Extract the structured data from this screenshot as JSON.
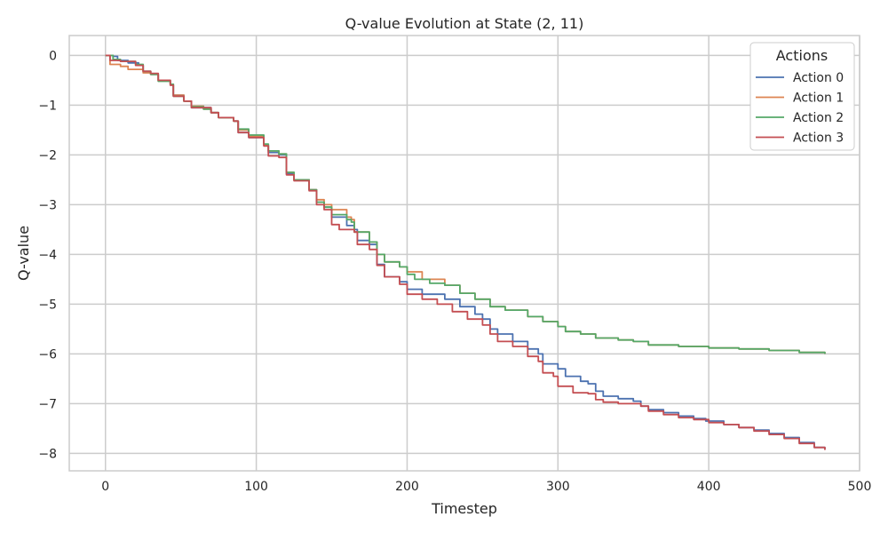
{
  "chart_data": {
    "type": "line",
    "title": "Q-value Evolution at State (2, 11)",
    "xlabel": "Timestep",
    "ylabel": "Q-value",
    "xlim": [
      -24,
      500
    ],
    "ylim": [
      -8.35,
      0.4
    ],
    "xticks": [
      0,
      100,
      200,
      300,
      400,
      500
    ],
    "yticks": [
      0,
      -1,
      -2,
      -3,
      -4,
      -5,
      -6,
      -7,
      -8
    ],
    "ytick_labels": [
      "0",
      "−1",
      "−2",
      "−3",
      "−4",
      "−5",
      "−6",
      "−7",
      "−8"
    ],
    "grid": true,
    "legend": {
      "title": "Actions",
      "placement": "top-right"
    },
    "series": [
      {
        "name": "Action 0",
        "color": "#4c72b0",
        "points": [
          [
            0,
            0
          ],
          [
            5,
            -0.02
          ],
          [
            8,
            -0.1
          ],
          [
            15,
            -0.15
          ],
          [
            22,
            -0.2
          ],
          [
            25,
            -0.32
          ],
          [
            30,
            -0.38
          ],
          [
            35,
            -0.5
          ],
          [
            43,
            -0.58
          ],
          [
            45,
            -0.8
          ],
          [
            52,
            -0.92
          ],
          [
            57,
            -1.05
          ],
          [
            70,
            -1.15
          ],
          [
            75,
            -1.25
          ],
          [
            85,
            -1.32
          ],
          [
            88,
            -1.55
          ],
          [
            95,
            -1.65
          ],
          [
            105,
            -1.8
          ],
          [
            108,
            -1.95
          ],
          [
            115,
            -2.0
          ],
          [
            120,
            -2.38
          ],
          [
            125,
            -2.5
          ],
          [
            135,
            -2.7
          ],
          [
            140,
            -2.95
          ],
          [
            145,
            -3.05
          ],
          [
            150,
            -3.25
          ],
          [
            160,
            -3.42
          ],
          [
            165,
            -3.5
          ],
          [
            167,
            -3.72
          ],
          [
            175,
            -3.8
          ],
          [
            180,
            -4.2
          ],
          [
            185,
            -4.45
          ],
          [
            195,
            -4.55
          ],
          [
            200,
            -4.7
          ],
          [
            210,
            -4.8
          ],
          [
            225,
            -4.9
          ],
          [
            235,
            -5.05
          ],
          [
            245,
            -5.2
          ],
          [
            250,
            -5.3
          ],
          [
            255,
            -5.5
          ],
          [
            260,
            -5.6
          ],
          [
            270,
            -5.75
          ],
          [
            280,
            -5.9
          ],
          [
            287,
            -6.0
          ],
          [
            290,
            -6.2
          ],
          [
            300,
            -6.3
          ],
          [
            305,
            -6.45
          ],
          [
            315,
            -6.55
          ],
          [
            320,
            -6.6
          ],
          [
            325,
            -6.75
          ],
          [
            330,
            -6.85
          ],
          [
            340,
            -6.9
          ],
          [
            350,
            -6.95
          ],
          [
            355,
            -7.05
          ],
          [
            360,
            -7.12
          ],
          [
            370,
            -7.18
          ],
          [
            380,
            -7.25
          ],
          [
            390,
            -7.3
          ],
          [
            398,
            -7.35
          ],
          [
            410,
            -7.42
          ],
          [
            420,
            -7.48
          ],
          [
            430,
            -7.53
          ],
          [
            440,
            -7.6
          ],
          [
            450,
            -7.68
          ],
          [
            460,
            -7.78
          ],
          [
            470,
            -7.88
          ],
          [
            477,
            -7.92
          ]
        ]
      },
      {
        "name": "Action 1",
        "color": "#dd8452",
        "points": [
          [
            0,
            0
          ],
          [
            3,
            -0.18
          ],
          [
            10,
            -0.22
          ],
          [
            15,
            -0.28
          ],
          [
            22,
            -0.28
          ],
          [
            25,
            -0.35
          ],
          [
            30,
            -0.38
          ],
          [
            35,
            -0.5
          ],
          [
            43,
            -0.58
          ],
          [
            45,
            -0.8
          ],
          [
            52,
            -0.92
          ],
          [
            57,
            -1.02
          ],
          [
            65,
            -1.08
          ],
          [
            70,
            -1.15
          ],
          [
            75,
            -1.25
          ],
          [
            85,
            -1.32
          ],
          [
            88,
            -1.5
          ],
          [
            95,
            -1.62
          ],
          [
            105,
            -1.8
          ],
          [
            108,
            -1.92
          ],
          [
            115,
            -1.98
          ],
          [
            120,
            -2.35
          ],
          [
            125,
            -2.5
          ],
          [
            135,
            -2.7
          ],
          [
            140,
            -2.9
          ],
          [
            145,
            -3.0
          ],
          [
            150,
            -3.1
          ],
          [
            160,
            -3.25
          ],
          [
            163,
            -3.3
          ],
          [
            165,
            -3.55
          ],
          [
            175,
            -3.75
          ],
          [
            180,
            -4.0
          ],
          [
            185,
            -4.15
          ],
          [
            195,
            -4.25
          ],
          [
            200,
            -4.35
          ],
          [
            210,
            -4.5
          ],
          [
            225,
            -4.62
          ],
          [
            235,
            -4.78
          ],
          [
            245,
            -4.9
          ],
          [
            255,
            -5.05
          ],
          [
            265,
            -5.12
          ],
          [
            280,
            -5.25
          ],
          [
            290,
            -5.35
          ],
          [
            300,
            -5.45
          ],
          [
            305,
            -5.55
          ],
          [
            315,
            -5.6
          ],
          [
            325,
            -5.68
          ],
          [
            340,
            -5.72
          ],
          [
            350,
            -5.75
          ],
          [
            360,
            -5.82
          ],
          [
            380,
            -5.85
          ],
          [
            400,
            -5.88
          ],
          [
            420,
            -5.9
          ],
          [
            440,
            -5.93
          ],
          [
            460,
            -5.97
          ],
          [
            477,
            -6.0
          ]
        ]
      },
      {
        "name": "Action 2",
        "color": "#55a868",
        "points": [
          [
            0,
            0
          ],
          [
            5,
            -0.08
          ],
          [
            10,
            -0.12
          ],
          [
            20,
            -0.18
          ],
          [
            25,
            -0.32
          ],
          [
            30,
            -0.38
          ],
          [
            35,
            -0.52
          ],
          [
            43,
            -0.58
          ],
          [
            45,
            -0.82
          ],
          [
            52,
            -0.92
          ],
          [
            57,
            -1.03
          ],
          [
            65,
            -1.08
          ],
          [
            70,
            -1.15
          ],
          [
            75,
            -1.25
          ],
          [
            85,
            -1.32
          ],
          [
            88,
            -1.48
          ],
          [
            95,
            -1.6
          ],
          [
            105,
            -1.78
          ],
          [
            108,
            -1.92
          ],
          [
            115,
            -1.98
          ],
          [
            120,
            -2.35
          ],
          [
            125,
            -2.5
          ],
          [
            135,
            -2.7
          ],
          [
            140,
            -2.95
          ],
          [
            145,
            -3.05
          ],
          [
            150,
            -3.2
          ],
          [
            160,
            -3.3
          ],
          [
            163,
            -3.35
          ],
          [
            165,
            -3.55
          ],
          [
            175,
            -3.75
          ],
          [
            180,
            -4.0
          ],
          [
            185,
            -4.15
          ],
          [
            195,
            -4.25
          ],
          [
            200,
            -4.4
          ],
          [
            205,
            -4.5
          ],
          [
            215,
            -4.58
          ],
          [
            225,
            -4.62
          ],
          [
            235,
            -4.78
          ],
          [
            245,
            -4.9
          ],
          [
            255,
            -5.05
          ],
          [
            265,
            -5.12
          ],
          [
            280,
            -5.25
          ],
          [
            290,
            -5.35
          ],
          [
            300,
            -5.45
          ],
          [
            305,
            -5.55
          ],
          [
            315,
            -5.6
          ],
          [
            325,
            -5.68
          ],
          [
            340,
            -5.72
          ],
          [
            350,
            -5.75
          ],
          [
            360,
            -5.82
          ],
          [
            380,
            -5.85
          ],
          [
            400,
            -5.88
          ],
          [
            420,
            -5.9
          ],
          [
            440,
            -5.93
          ],
          [
            460,
            -5.97
          ],
          [
            477,
            -6.0
          ]
        ]
      },
      {
        "name": "Action 3",
        "color": "#c44e52",
        "points": [
          [
            0,
            0
          ],
          [
            3,
            -0.1
          ],
          [
            10,
            -0.12
          ],
          [
            20,
            -0.2
          ],
          [
            25,
            -0.32
          ],
          [
            30,
            -0.36
          ],
          [
            35,
            -0.5
          ],
          [
            43,
            -0.6
          ],
          [
            45,
            -0.82
          ],
          [
            52,
            -0.92
          ],
          [
            57,
            -1.05
          ],
          [
            70,
            -1.15
          ],
          [
            75,
            -1.25
          ],
          [
            85,
            -1.32
          ],
          [
            88,
            -1.55
          ],
          [
            95,
            -1.65
          ],
          [
            105,
            -1.82
          ],
          [
            108,
            -2.02
          ],
          [
            115,
            -2.05
          ],
          [
            120,
            -2.4
          ],
          [
            125,
            -2.52
          ],
          [
            135,
            -2.72
          ],
          [
            140,
            -3.0
          ],
          [
            145,
            -3.1
          ],
          [
            150,
            -3.4
          ],
          [
            155,
            -3.5
          ],
          [
            165,
            -3.55
          ],
          [
            167,
            -3.8
          ],
          [
            175,
            -3.9
          ],
          [
            180,
            -4.22
          ],
          [
            185,
            -4.45
          ],
          [
            195,
            -4.6
          ],
          [
            200,
            -4.8
          ],
          [
            210,
            -4.9
          ],
          [
            220,
            -5.0
          ],
          [
            230,
            -5.15
          ],
          [
            240,
            -5.3
          ],
          [
            250,
            -5.42
          ],
          [
            255,
            -5.6
          ],
          [
            260,
            -5.75
          ],
          [
            270,
            -5.85
          ],
          [
            280,
            -6.05
          ],
          [
            287,
            -6.15
          ],
          [
            290,
            -6.38
          ],
          [
            297,
            -6.45
          ],
          [
            300,
            -6.65
          ],
          [
            310,
            -6.78
          ],
          [
            320,
            -6.8
          ],
          [
            325,
            -6.92
          ],
          [
            330,
            -6.97
          ],
          [
            340,
            -7.0
          ],
          [
            355,
            -7.05
          ],
          [
            360,
            -7.15
          ],
          [
            370,
            -7.22
          ],
          [
            380,
            -7.28
          ],
          [
            390,
            -7.32
          ],
          [
            400,
            -7.38
          ],
          [
            410,
            -7.42
          ],
          [
            420,
            -7.48
          ],
          [
            430,
            -7.55
          ],
          [
            440,
            -7.62
          ],
          [
            450,
            -7.7
          ],
          [
            460,
            -7.8
          ],
          [
            470,
            -7.88
          ],
          [
            477,
            -7.93
          ]
        ]
      }
    ]
  }
}
